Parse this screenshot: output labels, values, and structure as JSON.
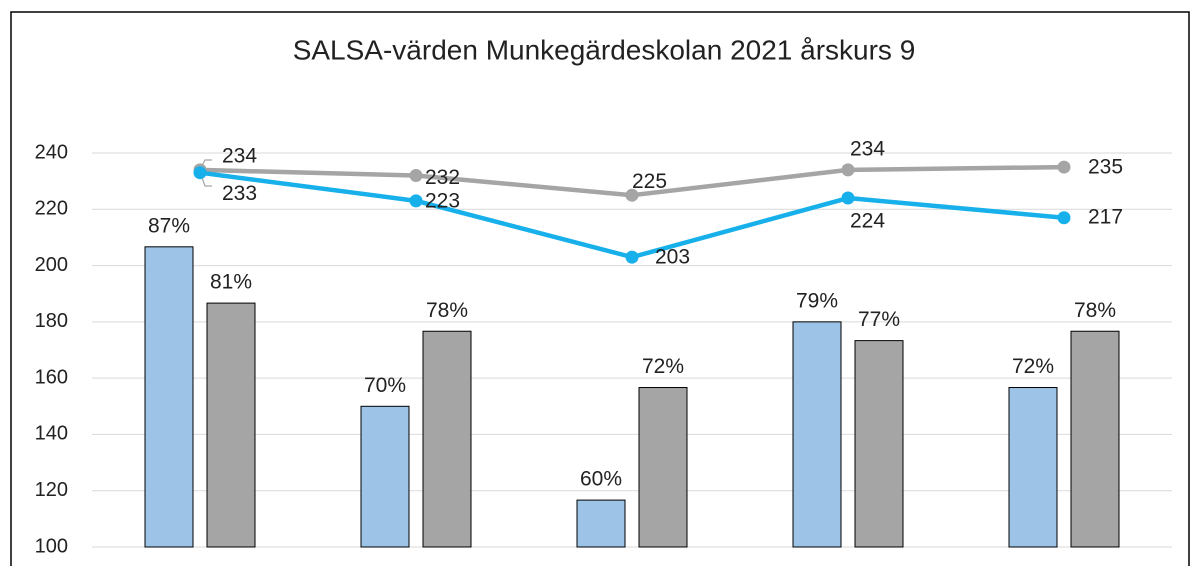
{
  "chart_data": {
    "type": "bar_line",
    "title": "SALSA-värden Munkegärdeskolan 2021 årskurs 9",
    "categories": [
      null,
      null,
      null,
      null,
      null
    ],
    "ylim": [
      100,
      240
    ],
    "yticks": [
      100,
      120,
      140,
      160,
      180,
      200,
      220,
      240
    ],
    "y2lim": [
      55,
      97
    ],
    "grid": true,
    "series": [
      {
        "type": "bar",
        "axis": "y2",
        "color": "#9dc3e6",
        "values": [
          87,
          70,
          60,
          79,
          72
        ],
        "value_labels": [
          "87%",
          "70%",
          "60%",
          "79%",
          "72%"
        ]
      },
      {
        "type": "bar",
        "axis": "y2",
        "color": "#a5a5a5",
        "values": [
          81,
          78,
          72,
          77,
          78
        ],
        "value_labels": [
          "81%",
          "78%",
          "72%",
          "77%",
          "78%"
        ]
      },
      {
        "type": "line",
        "color": "#a5a5a5",
        "values": [
          234,
          232,
          225,
          234,
          235
        ]
      },
      {
        "type": "line",
        "color": "#17b0ea",
        "values": [
          233,
          223,
          203,
          224,
          217
        ]
      }
    ]
  }
}
